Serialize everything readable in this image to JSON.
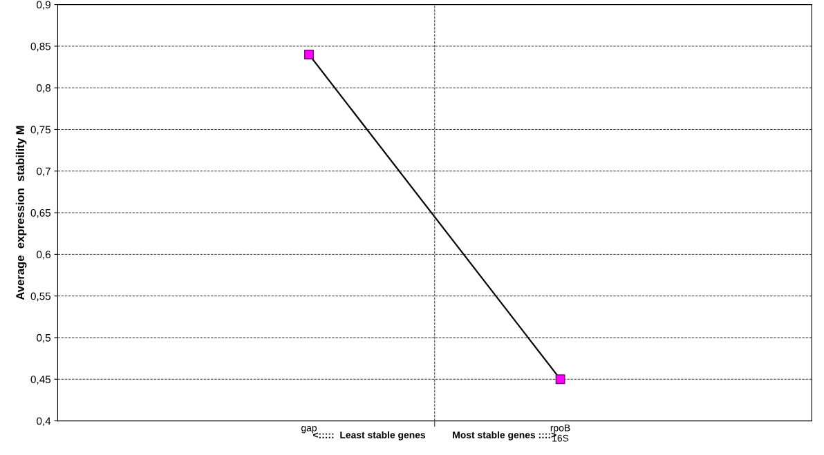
{
  "chart_data": {
    "type": "line",
    "categories": [
      "gap",
      "rpoB\n16S"
    ],
    "series": [
      {
        "color": "#000000",
        "colors": [
          "#ff00ff",
          "#ff00ff"
        ],
        "values": [
          0.84,
          0.45
        ]
      }
    ],
    "xlabel": "<:::::  Least stable genes          Most stable genes ::::>",
    "ylabel": "Average  expression  stability M",
    "ylim": [
      0.4,
      0.9
    ],
    "yticks": [
      {
        "value": 0.4,
        "label": "0,4"
      },
      {
        "value": 0.45,
        "label": "0,45"
      },
      {
        "value": 0.5,
        "label": "0,5"
      },
      {
        "value": 0.55,
        "label": "0,55"
      },
      {
        "value": 0.6,
        "label": "0,6"
      },
      {
        "value": 0.65,
        "label": "0,65"
      },
      {
        "value": 0.7,
        "label": "0,7"
      },
      {
        "value": 0.75,
        "label": "0,75"
      },
      {
        "value": 0.8,
        "label": "0,8"
      },
      {
        "value": 0.85,
        "label": "0,85"
      },
      {
        "value": 0.9,
        "label": "0,9"
      }
    ],
    "grid": true,
    "marker": "square",
    "line_style": "solid",
    "legend": false
  }
}
